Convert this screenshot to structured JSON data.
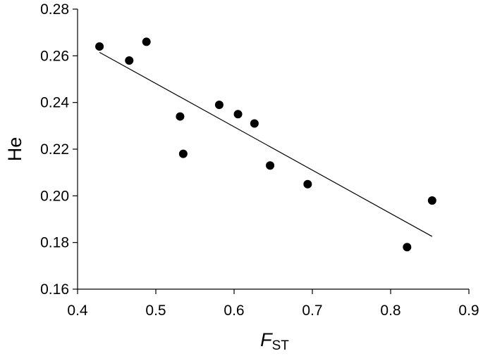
{
  "chart_data": {
    "type": "scatter",
    "title": "",
    "xlabel": {
      "main": "F",
      "sub": "ST"
    },
    "ylabel": "He",
    "xlim": [
      0.4,
      0.9
    ],
    "ylim": [
      0.16,
      0.28
    ],
    "x_ticks": [
      "0.4",
      "0.5",
      "0.6",
      "0.7",
      "0.8",
      "0.9"
    ],
    "y_ticks": [
      "0.16",
      "0.18",
      "0.20",
      "0.22",
      "0.24",
      "0.26",
      "0.28"
    ],
    "grid": false,
    "legend": "none",
    "series": [
      {
        "points": [
          {
            "x": 0.428,
            "y": 0.264
          },
          {
            "x": 0.466,
            "y": 0.258
          },
          {
            "x": 0.488,
            "y": 0.266
          },
          {
            "x": 0.531,
            "y": 0.234
          },
          {
            "x": 0.535,
            "y": 0.218
          },
          {
            "x": 0.581,
            "y": 0.239
          },
          {
            "x": 0.605,
            "y": 0.235
          },
          {
            "x": 0.626,
            "y": 0.231
          },
          {
            "x": 0.646,
            "y": 0.213
          },
          {
            "x": 0.694,
            "y": 0.205
          },
          {
            "x": 0.821,
            "y": 0.178
          },
          {
            "x": 0.853,
            "y": 0.198
          }
        ]
      }
    ],
    "trendline": {
      "type": "linear",
      "from": {
        "x": 0.428,
        "y": 0.2615
      },
      "to": {
        "x": 0.853,
        "y": 0.1826
      }
    }
  }
}
